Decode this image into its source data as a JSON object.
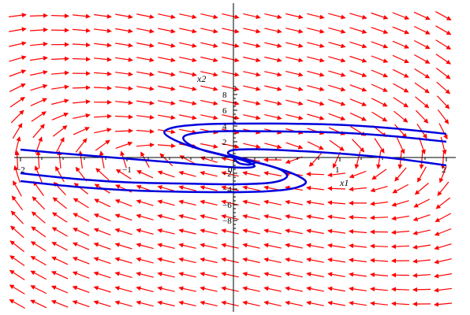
{
  "chart_data": {
    "type": "phase-portrait",
    "title": "",
    "xlabel": "x1",
    "ylabel": "x2",
    "xlim": [
      -2,
      2
    ],
    "ylim": [
      -10,
      10
    ],
    "x_ticks": [
      -2,
      -1,
      0,
      1,
      2
    ],
    "y_ticks": [
      -8,
      -6,
      -4,
      -2,
      2,
      4,
      6,
      8
    ],
    "x_tick_labels": [
      "−2",
      "−1",
      "0",
      "1",
      "2"
    ],
    "y_tick_labels": [
      "−8",
      "−6",
      "−4",
      "−2",
      "2",
      "4",
      "6",
      "8"
    ],
    "grid": false,
    "colors": {
      "arrows": "#ff0000",
      "trajectories": "#0000dd",
      "axes": "#000000"
    },
    "trajectories": [
      {
        "points": [
          [
            2,
            3
          ],
          [
            1.5,
            3.7
          ],
          [
            1.0,
            4.15
          ],
          [
            0.5,
            4.3
          ],
          [
            0.0,
            4.3
          ],
          [
            -0.3,
            4.2
          ],
          [
            -0.55,
            3.85
          ],
          [
            -0.65,
            3.2
          ],
          [
            -0.55,
            2.2
          ],
          [
            -0.35,
            1.2
          ],
          [
            -0.15,
            0.5
          ],
          [
            0.0,
            0.0
          ]
        ]
      },
      {
        "points": [
          [
            2,
            2
          ],
          [
            1.5,
            2.7
          ],
          [
            1.0,
            3.15
          ],
          [
            0.5,
            3.3
          ],
          [
            0.0,
            3.35
          ],
          [
            -0.25,
            3.25
          ],
          [
            -0.45,
            2.8
          ],
          [
            -0.45,
            2.0
          ],
          [
            -0.3,
            1.0
          ],
          [
            -0.12,
            0.35
          ],
          [
            0.0,
            0.0
          ]
        ]
      },
      {
        "points": [
          [
            2,
            -1
          ],
          [
            1.5,
            -0.1
          ],
          [
            1.0,
            0.5
          ],
          [
            0.5,
            0.9
          ],
          [
            0.2,
            1.05
          ],
          [
            0.0,
            0.95
          ],
          [
            -0.05,
            0.5
          ],
          [
            0.05,
            0.0
          ],
          [
            0.2,
            -0.55
          ],
          [
            0.15,
            -0.9
          ],
          [
            0.05,
            -0.7
          ],
          [
            0.0,
            0.0
          ]
        ]
      },
      {
        "points": [
          [
            -2,
            1
          ],
          [
            -1.5,
            0.4
          ],
          [
            -1.0,
            -0.15
          ],
          [
            -0.5,
            -0.7
          ],
          [
            -0.15,
            -1.1
          ],
          [
            0.1,
            -1.3
          ],
          [
            0.2,
            -1.1
          ],
          [
            0.12,
            -0.5
          ],
          [
            0.0,
            0.0
          ]
        ]
      },
      {
        "points": [
          [
            -2,
            -2
          ],
          [
            -1.5,
            -2.7
          ],
          [
            -1.0,
            -3.15
          ],
          [
            -0.5,
            -3.3
          ],
          [
            0.0,
            -3.4
          ],
          [
            0.35,
            -3.2
          ],
          [
            0.5,
            -2.5
          ],
          [
            0.45,
            -1.6
          ],
          [
            0.3,
            -0.9
          ],
          [
            0.12,
            -0.35
          ],
          [
            0.0,
            0.0
          ]
        ]
      },
      {
        "points": [
          [
            -2,
            -3
          ],
          [
            -1.5,
            -3.7
          ],
          [
            -1.0,
            -4.15
          ],
          [
            -0.5,
            -4.35
          ],
          [
            0.0,
            -4.4
          ],
          [
            0.3,
            -4.3
          ],
          [
            0.55,
            -3.95
          ],
          [
            0.68,
            -3.2
          ],
          [
            0.6,
            -2.3
          ],
          [
            0.4,
            -1.3
          ],
          [
            0.18,
            -0.5
          ],
          [
            0.0,
            0.0
          ]
        ]
      }
    ]
  }
}
